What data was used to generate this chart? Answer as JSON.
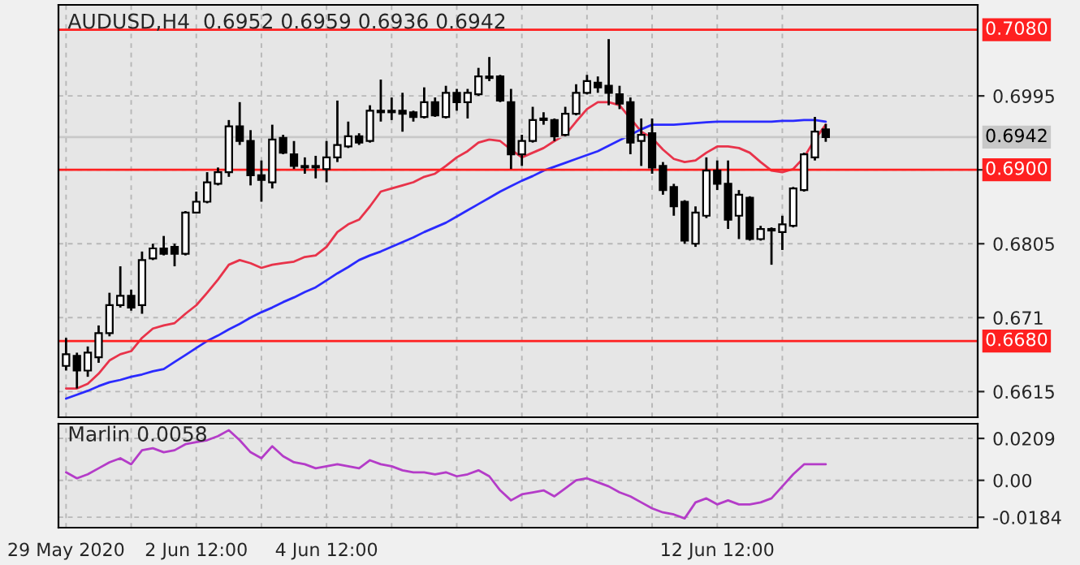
{
  "chart_data": [
    {
      "type": "candlestick",
      "title": "AUDUSD,H4  0.6952 0.6959 0.6936 0.6942",
      "categories": [
        null,
        null,
        null,
        null,
        null,
        null,
        null,
        null,
        null,
        null,
        null,
        null,
        null,
        null,
        null,
        null,
        null,
        null,
        null,
        null,
        null,
        null,
        null,
        null,
        null,
        null,
        null,
        null,
        null,
        null,
        null,
        null,
        null,
        null,
        null,
        null,
        null,
        null,
        null,
        null,
        null,
        null,
        null,
        null,
        null,
        null,
        null,
        null,
        null,
        null,
        null,
        null,
        null,
        null,
        null,
        null,
        null,
        null,
        null,
        null,
        null,
        null,
        null,
        null,
        null,
        null,
        null,
        null,
        null,
        null,
        null
      ],
      "ohlc": [
        [
          0.6648,
          0.6684,
          0.6642,
          0.6663
        ],
        [
          0.6661,
          0.6665,
          0.6619,
          0.6642
        ],
        [
          0.6642,
          0.6673,
          0.6634,
          0.6665
        ],
        [
          0.6659,
          0.67,
          0.6652,
          0.669
        ],
        [
          0.669,
          0.6742,
          0.6686,
          0.6726
        ],
        [
          0.6726,
          0.6776,
          0.6723,
          0.6738
        ],
        [
          0.6738,
          0.6746,
          0.6719,
          0.6723
        ],
        [
          0.6726,
          0.6795,
          0.6715,
          0.6784
        ],
        [
          0.6786,
          0.6805,
          0.6784,
          0.6799
        ],
        [
          0.6799,
          0.6815,
          0.679,
          0.6792
        ],
        [
          0.6801,
          0.6805,
          0.6776,
          0.6792
        ],
        [
          0.6792,
          0.6847,
          0.679,
          0.6845
        ],
        [
          0.6845,
          0.6872,
          0.6845,
          0.6859
        ],
        [
          0.6859,
          0.6897,
          0.6857,
          0.6884
        ],
        [
          0.6882,
          0.6903,
          0.688,
          0.6897
        ],
        [
          0.6897,
          0.6964,
          0.6891,
          0.6956
        ],
        [
          0.6956,
          0.6987,
          0.6932,
          0.6937
        ],
        [
          0.6937,
          0.6951,
          0.688,
          0.6893
        ],
        [
          0.6893,
          0.6912,
          0.6859,
          0.6887
        ],
        [
          0.6884,
          0.6958,
          0.6876,
          0.6939
        ],
        [
          0.6941,
          0.6945,
          0.692,
          0.6922
        ],
        [
          0.692,
          0.6937,
          0.6901,
          0.6905
        ],
        [
          0.6905,
          0.6916,
          0.6895,
          0.6903
        ],
        [
          0.6903,
          0.6918,
          0.6889,
          0.6905
        ],
        [
          0.6901,
          0.6937,
          0.6884,
          0.6916
        ],
        [
          0.6916,
          0.6989,
          0.691,
          0.6932
        ],
        [
          0.693,
          0.6962,
          0.6928,
          0.6943
        ],
        [
          0.6943,
          0.6947,
          0.6932,
          0.6935
        ],
        [
          0.6937,
          0.6983,
          0.6935,
          0.6976
        ],
        [
          0.6976,
          0.7016,
          0.6962,
          0.6974
        ],
        [
          0.6974,
          0.6993,
          0.6964,
          0.6976
        ],
        [
          0.6976,
          0.6999,
          0.6949,
          0.6972
        ],
        [
          0.6974,
          0.6976,
          0.6962,
          0.6968
        ],
        [
          0.6968,
          0.7006,
          0.6966,
          0.6987
        ],
        [
          0.6987,
          0.6993,
          0.6968,
          0.697
        ],
        [
          0.6968,
          0.7008,
          0.6966,
          0.6999
        ],
        [
          0.6999,
          0.7004,
          0.6976,
          0.6987
        ],
        [
          0.6987,
          0.7004,
          0.6966,
          0.6999
        ],
        [
          0.6997,
          0.7031,
          0.6995,
          0.702
        ],
        [
          0.702,
          0.7045,
          0.7014,
          0.7018
        ],
        [
          0.702,
          0.7022,
          0.6987,
          0.6989
        ],
        [
          0.6987,
          0.7004,
          0.6901,
          0.692
        ],
        [
          0.692,
          0.6945,
          0.6905,
          0.6937
        ],
        [
          0.6937,
          0.6981,
          0.6935,
          0.6964
        ],
        [
          0.6964,
          0.6974,
          0.6958,
          0.6966
        ],
        [
          0.6964,
          0.6966,
          0.6937,
          0.6943
        ],
        [
          0.6945,
          0.6981,
          0.6943,
          0.6972
        ],
        [
          0.6972,
          0.701,
          0.697,
          0.6999
        ],
        [
          0.6999,
          0.7022,
          0.6997,
          0.7014
        ],
        [
          0.7012,
          0.702,
          0.6999,
          0.7006
        ],
        [
          0.7008,
          0.7068,
          0.6983,
          0.6999
        ],
        [
          0.6997,
          0.7008,
          0.6978,
          0.6985
        ],
        [
          0.6987,
          0.6993,
          0.692,
          0.6935
        ],
        [
          0.6937,
          0.6966,
          0.6905,
          0.6945
        ],
        [
          0.6947,
          0.6966,
          0.6895,
          0.6903
        ],
        [
          0.6905,
          0.691,
          0.6868,
          0.6874
        ],
        [
          0.6878,
          0.6882,
          0.6841,
          0.6853
        ],
        [
          0.6859,
          0.6861,
          0.6805,
          0.6809
        ],
        [
          0.6805,
          0.6853,
          0.6801,
          0.6845
        ],
        [
          0.6841,
          0.6916,
          0.6838,
          0.6899
        ],
        [
          0.6899,
          0.6912,
          0.6874,
          0.6882
        ],
        [
          0.6882,
          0.6912,
          0.6824,
          0.6836
        ],
        [
          0.6841,
          0.6874,
          0.6811,
          0.6868
        ],
        [
          0.6864,
          0.6866,
          0.6809,
          0.6811
        ],
        [
          0.6811,
          0.6828,
          0.6809,
          0.6824
        ],
        [
          0.6824,
          0.6826,
          0.6778,
          0.6822
        ],
        [
          0.682,
          0.6841,
          0.6797,
          0.683
        ],
        [
          0.6828,
          0.6878,
          0.6826,
          0.6876
        ],
        [
          0.6874,
          0.6922,
          0.6872,
          0.692
        ],
        [
          0.6916,
          0.6968,
          0.6912,
          0.6949
        ],
        [
          0.6952,
          0.6959,
          0.6936,
          0.6942
        ]
      ],
      "series": [
        {
          "type": "line",
          "color": "#e8334a",
          "values": [
            0.6619,
            0.6619,
            0.6625,
            0.6638,
            0.6655,
            0.6663,
            0.6667,
            0.6684,
            0.6696,
            0.67,
            0.6703,
            0.6715,
            0.6726,
            0.6742,
            0.6759,
            0.6778,
            0.6784,
            0.678,
            0.6774,
            0.6778,
            0.678,
            0.6782,
            0.6788,
            0.679,
            0.6801,
            0.682,
            0.683,
            0.6836,
            0.6853,
            0.6872,
            0.6876,
            0.688,
            0.6884,
            0.6891,
            0.6895,
            0.6905,
            0.6916,
            0.6924,
            0.6935,
            0.6939,
            0.6937,
            0.6926,
            0.6916,
            0.6922,
            0.6928,
            0.6937,
            0.6945,
            0.6962,
            0.6978,
            0.6987,
            0.6987,
            0.6983,
            0.6966,
            0.6949,
            0.6941,
            0.6926,
            0.6914,
            0.691,
            0.6912,
            0.6922,
            0.693,
            0.693,
            0.6928,
            0.6922,
            0.691,
            0.6899,
            0.6897,
            0.6901,
            0.6916,
            0.6939,
            0.6958
          ]
        },
        {
          "type": "line",
          "color": "#2a2aff",
          "values": [
            0.6606,
            0.6611,
            0.6616,
            0.6622,
            0.6627,
            0.663,
            0.6634,
            0.6637,
            0.6641,
            0.6644,
            0.6653,
            0.6662,
            0.6671,
            0.668,
            0.6687,
            0.6695,
            0.6702,
            0.671,
            0.6717,
            0.6723,
            0.673,
            0.6736,
            0.6743,
            0.6749,
            0.6758,
            0.6767,
            0.6775,
            0.6784,
            0.679,
            0.6795,
            0.6801,
            0.6807,
            0.6813,
            0.682,
            0.6826,
            0.6832,
            0.684,
            0.6848,
            0.6856,
            0.6864,
            0.6872,
            0.6879,
            0.6886,
            0.6892,
            0.6899,
            0.6904,
            0.6909,
            0.6914,
            0.6919,
            0.6924,
            0.6931,
            0.6938,
            0.6945,
            0.6952,
            0.6958,
            0.6958,
            0.6958,
            0.6959,
            0.696,
            0.6961,
            0.6962,
            0.6962,
            0.6962,
            0.6962,
            0.6962,
            0.6962,
            0.6963,
            0.6963,
            0.6964,
            0.6964,
            0.6962
          ]
        }
      ],
      "ylim": [
        0.6582,
        0.7112
      ],
      "yticks": [
        0.6615,
        0.671,
        0.6805,
        {
          "value": 0.69,
          "label": null
        },
        0.6995
      ],
      "ref_lines": [
        {
          "axis": "y",
          "value": 0.708,
          "label": "0.7080",
          "color": "#ff2020"
        },
        {
          "axis": "y",
          "value": 0.69,
          "label": "0.6900",
          "color": "#ff2020"
        },
        {
          "axis": "y",
          "value": 0.668,
          "label": "0.6680",
          "color": "#ff2020"
        },
        {
          "axis": "y",
          "value": 0.6942,
          "label": "0.6942",
          "color": "#c8c8c8"
        }
      ],
      "grid": true,
      "tick_labels": "y"
    },
    {
      "type": "line",
      "title": "Marlin 0.0058",
      "categories": [
        "29 May 2020",
        null,
        null,
        null,
        null,
        null,
        null,
        null,
        null,
        null,
        null,
        null,
        "2 Jun 12:00",
        null,
        null,
        null,
        null,
        null,
        null,
        null,
        null,
        null,
        null,
        null,
        "4 Jun 12:00",
        null,
        null,
        null,
        null,
        null,
        null,
        null,
        null,
        null,
        null,
        null,
        null,
        null,
        null,
        null,
        null,
        null,
        null,
        null,
        null,
        null,
        null,
        null,
        null,
        null,
        null,
        null,
        null,
        null,
        null,
        null,
        null,
        null,
        null,
        null,
        "12 Jun 12:00",
        null,
        null,
        null,
        null,
        null,
        null,
        null,
        null,
        null,
        null
      ],
      "series": [
        {
          "color": "#b43cc8",
          "values": [
            0.004,
            0.001,
            0.003,
            0.006,
            0.009,
            0.011,
            0.008,
            0.015,
            0.016,
            0.014,
            0.015,
            0.018,
            0.019,
            0.02,
            0.022,
            0.025,
            0.02,
            0.014,
            0.011,
            0.017,
            0.012,
            0.009,
            0.008,
            0.006,
            0.007,
            0.008,
            0.007,
            0.006,
            0.01,
            0.008,
            0.007,
            0.005,
            0.004,
            0.004,
            0.003,
            0.004,
            0.002,
            0.003,
            0.005,
            0.002,
            -0.005,
            -0.01,
            -0.007,
            -0.006,
            -0.005,
            -0.008,
            -0.004,
            0.0,
            0.001,
            -0.001,
            -0.003,
            -0.006,
            -0.008,
            -0.011,
            -0.014,
            -0.016,
            -0.017,
            -0.019,
            -0.011,
            -0.009,
            -0.012,
            -0.01,
            -0.012,
            -0.012,
            -0.011,
            -0.009,
            -0.003,
            0.003,
            0.008,
            0.008,
            0.008
          ]
        }
      ],
      "ylim": [
        -0.0236,
        0.0282
      ],
      "yticks": [
        0.0209,
        {
          "value": 0,
          "label": "0.00"
        },
        -0.0184
      ],
      "grid": true
    }
  ]
}
